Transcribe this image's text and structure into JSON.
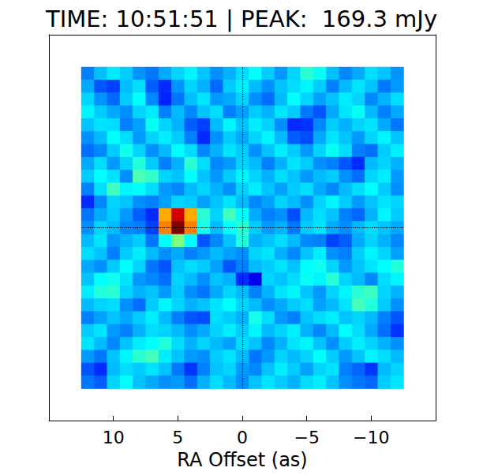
{
  "chart_data": {
    "type": "heatmap",
    "title": "TIME: 10:51:51 | PEAK:  169.3 mJy",
    "x_label": "RA Offset (as)",
    "xlim": [
      15,
      -15
    ],
    "xticks": [
      10,
      5,
      0,
      -5,
      -10
    ],
    "ylim": [
      -15,
      15
    ],
    "tick_labels": "x",
    "reference_lines": {
      "x": [
        0
      ],
      "y": [
        0
      ]
    },
    "color_range": [
      -70,
      170
    ],
    "x": [
      12,
      11,
      10,
      9,
      8,
      7,
      6,
      5,
      4,
      3,
      2,
      1,
      0,
      -1,
      -2,
      -3,
      -4,
      -5,
      -6,
      -7,
      -8,
      -9,
      -10,
      -11,
      -12
    ],
    "y": [
      12,
      11,
      10,
      9,
      8,
      7,
      6,
      5,
      4,
      3,
      2,
      1,
      0,
      -1,
      -2,
      -3,
      -4,
      -5,
      -6,
      -7,
      -8,
      -9,
      -10,
      -11,
      -12
    ],
    "cells": [
      [
        -10,
        5,
        15,
        8,
        -5,
        -12,
        0,
        10,
        18,
        6,
        -6,
        2,
        12,
        20,
        8,
        -4,
        10,
        30,
        22,
        5,
        -8,
        0,
        12,
        6,
        -5
      ],
      [
        0,
        -20,
        -25,
        5,
        12,
        -18,
        -30,
        -5,
        10,
        2,
        -15,
        8,
        16,
        4,
        -6,
        6,
        12,
        18,
        8,
        -10,
        4,
        14,
        6,
        -12,
        -4
      ],
      [
        10,
        -5,
        -15,
        8,
        20,
        -8,
        -32,
        -12,
        5,
        14,
        -4,
        0,
        10,
        -6,
        -14,
        4,
        20,
        10,
        -2,
        6,
        16,
        10,
        -8,
        2,
        12
      ],
      [
        18,
        8,
        0,
        -6,
        10,
        15,
        -10,
        4,
        -8,
        6,
        12,
        -10,
        -2,
        8,
        2,
        14,
        8,
        -12,
        -20,
        0,
        14,
        22,
        4,
        -10,
        0
      ],
      [
        6,
        14,
        12,
        -10,
        -2,
        22,
        10,
        2,
        -18,
        -25,
        4,
        18,
        6,
        16,
        10,
        -6,
        -30,
        -28,
        -8,
        8,
        2,
        10,
        14,
        0,
        -12
      ],
      [
        -6,
        4,
        20,
        12,
        -4,
        10,
        16,
        8,
        -10,
        -30,
        -6,
        8,
        0,
        10,
        18,
        4,
        -18,
        -22,
        0,
        14,
        6,
        -4,
        10,
        18,
        6
      ],
      [
        -14,
        -8,
        8,
        24,
        10,
        -6,
        4,
        20,
        12,
        -8,
        2,
        14,
        8,
        -6,
        6,
        16,
        8,
        -4,
        10,
        22,
        12,
        -10,
        -14,
        8,
        16
      ],
      [
        0,
        12,
        -4,
        10,
        28,
        8,
        -10,
        2,
        30,
        12,
        -8,
        -4,
        10,
        4,
        -10,
        2,
        14,
        8,
        -6,
        -10,
        -20,
        -30,
        4,
        10,
        2
      ],
      [
        8,
        20,
        14,
        -6,
        38,
        32,
        10,
        6,
        20,
        6,
        -4,
        8,
        18,
        10,
        2,
        12,
        6,
        -4,
        4,
        8,
        -6,
        -14,
        10,
        16,
        -4
      ],
      [
        -10,
        12,
        35,
        18,
        20,
        12,
        -4,
        -8,
        4,
        10,
        2,
        -6,
        10,
        16,
        6,
        -2,
        8,
        12,
        0,
        -8,
        4,
        12,
        20,
        8,
        -6
      ],
      [
        -30,
        -8,
        10,
        6,
        -6,
        -10,
        -2,
        10,
        8,
        -2,
        6,
        14,
        4,
        -8,
        -2,
        10,
        4,
        -6,
        10,
        18,
        8,
        -4,
        6,
        14,
        10
      ],
      [
        -12,
        0,
        8,
        -4,
        -18,
        -30,
        100,
        150,
        100,
        30,
        10,
        35,
        20,
        0,
        -10,
        -6,
        -22,
        4,
        12,
        6,
        -10,
        -16,
        2,
        18,
        8
      ],
      [
        -6,
        10,
        4,
        -8,
        -10,
        -25,
        110,
        169.3,
        110,
        25,
        4,
        20,
        30,
        8,
        -4,
        2,
        -12,
        8,
        14,
        0,
        -6,
        4,
        12,
        6,
        0
      ],
      [
        4,
        14,
        -4,
        2,
        8,
        -12,
        20,
        50,
        20,
        -20,
        -8,
        6,
        28,
        2,
        6,
        12,
        4,
        -8,
        -10,
        -25,
        -18,
        0,
        10,
        2,
        -8
      ],
      [
        12,
        6,
        -10,
        8,
        16,
        4,
        -6,
        0,
        -10,
        -4,
        4,
        -2,
        -6,
        10,
        14,
        2,
        -8,
        6,
        16,
        -6,
        -10,
        8,
        18,
        10,
        -2
      ],
      [
        0,
        -6,
        8,
        20,
        10,
        -12,
        -20,
        6,
        12,
        8,
        -2,
        -20,
        -10,
        4,
        8,
        14,
        6,
        20,
        24,
        10,
        -4,
        6,
        14,
        20,
        28
      ],
      [
        6,
        20,
        24,
        14,
        -4,
        -8,
        -14,
        10,
        4,
        -6,
        6,
        2,
        -30,
        -45,
        10,
        6,
        12,
        22,
        18,
        30,
        10,
        4,
        -8,
        12,
        18
      ],
      [
        16,
        28,
        30,
        10,
        2,
        6,
        -4,
        8,
        -6,
        -12,
        0,
        10,
        4,
        -10,
        2,
        14,
        18,
        6,
        -4,
        10,
        18,
        30,
        34,
        10,
        2
      ],
      [
        4,
        10,
        12,
        -6,
        -14,
        8,
        18,
        10,
        2,
        6,
        14,
        20,
        10,
        4,
        -6,
        0,
        8,
        12,
        -2,
        4,
        14,
        36,
        28,
        8,
        -6
      ],
      [
        -10,
        -2,
        6,
        0,
        8,
        16,
        4,
        -10,
        -20,
        -22,
        12,
        8,
        2,
        25,
        12,
        -4,
        -10,
        6,
        12,
        16,
        6,
        10,
        4,
        -10,
        -20
      ],
      [
        8,
        14,
        -4,
        -10,
        2,
        12,
        10,
        4,
        -6,
        0,
        10,
        16,
        8,
        18,
        4,
        10,
        16,
        2,
        -8,
        4,
        20,
        12,
        0,
        -14,
        -28
      ],
      [
        14,
        4,
        -8,
        6,
        16,
        20,
        28,
        12,
        2,
        10,
        4,
        -2,
        12,
        6,
        -8,
        2,
        14,
        18,
        6,
        -6,
        8,
        16,
        10,
        2,
        -6
      ],
      [
        -4,
        -12,
        6,
        18,
        30,
        36,
        16,
        6,
        -4,
        -6,
        8,
        14,
        4,
        -12,
        -4,
        10,
        4,
        10,
        20,
        8,
        -4,
        6,
        18,
        12,
        4
      ],
      [
        -20,
        -30,
        4,
        12,
        8,
        14,
        6,
        -12,
        -28,
        -10,
        6,
        10,
        -4,
        -8,
        6,
        16,
        8,
        -2,
        10,
        14,
        -10,
        -16,
        -28,
        4,
        10
      ],
      [
        -12,
        -18,
        10,
        20,
        6,
        0,
        -6,
        -4,
        -14,
        2,
        12,
        4,
        -6,
        6,
        14,
        8,
        2,
        12,
        16,
        6,
        -6,
        -12,
        -16,
        8,
        14
      ]
    ]
  }
}
